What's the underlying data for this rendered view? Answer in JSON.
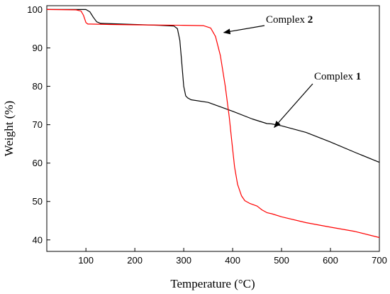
{
  "chart_data": {
    "type": "line",
    "xlabel": "Temperature (°C)",
    "ylabel": "Weight (%)",
    "xlim": [
      20,
      700
    ],
    "ylim": [
      37,
      101
    ],
    "xticks": [
      100,
      200,
      300,
      400,
      500,
      600,
      700
    ],
    "yticks": [
      40,
      50,
      60,
      70,
      80,
      90,
      100
    ],
    "grid": false,
    "series": [
      {
        "name": "Complex 1",
        "color": "#000000",
        "x": [
          20,
          60,
          100,
          108,
          115,
          122,
          130,
          200,
          250,
          280,
          287,
          292,
          296,
          300,
          304,
          308,
          315,
          350,
          400,
          440,
          470,
          480,
          500,
          550,
          600,
          650,
          700
        ],
        "y": [
          100,
          100,
          100,
          99.4,
          98,
          96.8,
          96.4,
          96.1,
          95.9,
          95.7,
          95,
          92,
          86,
          80,
          77.5,
          77,
          76.5,
          75.8,
          73.5,
          71.5,
          70.3,
          70.2,
          69.7,
          68,
          65.5,
          62.8,
          60.2
        ]
      },
      {
        "name": "Complex 2",
        "color": "#ff0000",
        "x": [
          20,
          80,
          90,
          95,
          100,
          104,
          110,
          150,
          200,
          300,
          340,
          355,
          365,
          375,
          385,
          393,
          398,
          404,
          410,
          418,
          425,
          435,
          450,
          460,
          470,
          480,
          500,
          550,
          600,
          650,
          700
        ],
        "y": [
          100,
          99.9,
          99.6,
          98.5,
          96.6,
          96.2,
          96.2,
          96.1,
          96,
          95.9,
          95.8,
          95.2,
          93,
          88,
          80,
          72,
          66,
          59,
          54.5,
          51.5,
          50.2,
          49.5,
          48.8,
          47.8,
          47.1,
          46.8,
          46,
          44.5,
          43.3,
          42.2,
          40.6
        ]
      }
    ],
    "annotations": [
      {
        "text": "Complex ",
        "bold_part": "2",
        "series": "Complex 2",
        "arrow_to": [
          382,
          94
        ]
      },
      {
        "text": "Complex ",
        "bold_part": "1",
        "series": "Complex 1",
        "arrow_to": [
          485,
          69.3
        ]
      }
    ]
  }
}
